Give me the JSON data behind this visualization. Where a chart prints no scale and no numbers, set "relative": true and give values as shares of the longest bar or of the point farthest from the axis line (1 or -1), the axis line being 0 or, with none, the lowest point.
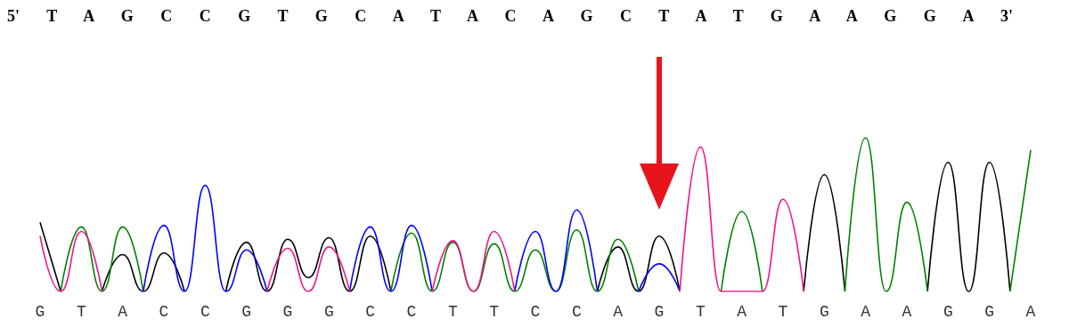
{
  "chart_data": {
    "type": "line",
    "relative": true,
    "title": "5' T A G C C G T G C A T A C A G C T A T G A A G G A 3'",
    "categories": [
      "G",
      null,
      "T",
      null,
      "A",
      null,
      "C",
      null,
      "C",
      null,
      "G",
      null,
      "G",
      null,
      "G",
      null,
      "C",
      null,
      "C",
      null,
      "T",
      null,
      "T",
      null,
      "C",
      null,
      "C",
      null,
      "A",
      null,
      "G",
      null,
      "T",
      null,
      "A",
      null,
      "T",
      null,
      "G",
      null,
      "A",
      null,
      "A",
      null,
      "G",
      null,
      "G",
      null,
      "A"
    ],
    "series": [
      {
        "color": "#000000",
        "values": [
          0.45,
          0,
          null,
          0,
          0.24,
          0,
          0.25,
          0,
          null,
          0,
          0.32,
          0,
          0.34,
          0.09,
          0.35,
          0,
          0.36,
          0,
          null,
          null,
          null,
          null,
          null,
          null,
          null,
          null,
          null,
          0,
          0.29,
          0,
          0.36,
          0,
          null,
          null,
          null,
          null,
          null,
          0,
          0.76,
          0,
          null,
          null,
          null,
          0,
          0.84,
          0,
          0.84,
          0,
          null
        ]
      },
      {
        "color": "#008000",
        "values": [
          null,
          0,
          0.42,
          0,
          0.42,
          0,
          null,
          null,
          null,
          null,
          null,
          null,
          null,
          null,
          null,
          null,
          null,
          0,
          0.38,
          0,
          0.32,
          0,
          0.31,
          0,
          0.27,
          0,
          0.4,
          0,
          0.34,
          0,
          null,
          null,
          null,
          0,
          0.52,
          0,
          null,
          null,
          null,
          0,
          1,
          0,
          0.58,
          0,
          null,
          null,
          null,
          0,
          0.92
        ]
      },
      {
        "color": "#0000ff",
        "values": [
          null,
          null,
          null,
          null,
          null,
          0,
          0.43,
          0,
          0.69,
          0,
          0.27,
          0,
          null,
          null,
          null,
          0,
          0.42,
          0,
          0.43,
          0,
          null,
          null,
          null,
          0,
          0.39,
          0,
          0.53,
          0,
          null,
          0,
          0.18,
          0,
          null,
          null,
          null,
          null,
          null,
          null,
          null,
          null,
          null,
          null,
          null,
          null,
          null,
          null,
          null,
          null,
          null
        ]
      },
      {
        "color": "#f0148c",
        "values": [
          0.36,
          0,
          0.39,
          0,
          null,
          null,
          null,
          null,
          null,
          null,
          null,
          0,
          0.28,
          0,
          0.29,
          0,
          null,
          null,
          null,
          0,
          0.33,
          0,
          0.39,
          0,
          null,
          null,
          null,
          null,
          null,
          null,
          null,
          0,
          0.94,
          0,
          0,
          0,
          0.6,
          0,
          null,
          null,
          null,
          null,
          null,
          null,
          null,
          null,
          null,
          null,
          null
        ]
      }
    ],
    "marker": "none",
    "tick_labels": "x"
  }
}
